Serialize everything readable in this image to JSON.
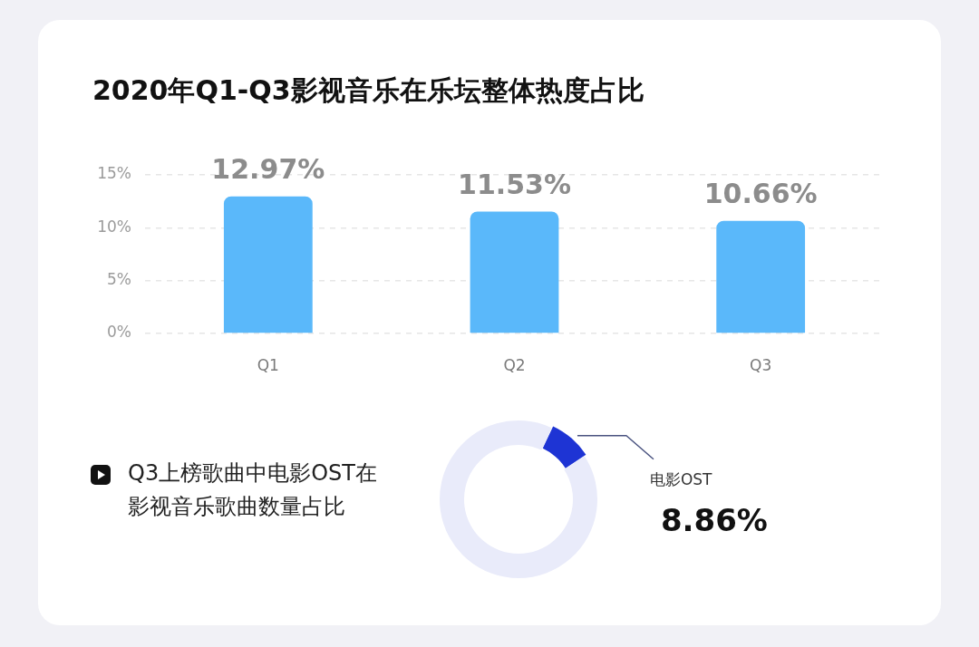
{
  "chart_data": [
    {
      "type": "bar",
      "title": "2020年Q1-Q3影视音乐在乐坛整体热度占比",
      "categories": [
        "Q1",
        "Q2",
        "Q3"
      ],
      "values": [
        12.97,
        11.53,
        10.66
      ],
      "color": "#5ab8fa",
      "value_labels": [
        "12.97%",
        "11.53%",
        "10.66%"
      ],
      "ylim": [
        0,
        15
      ],
      "yticks": [
        {
          "value": 0,
          "label": "0%"
        },
        {
          "value": 5,
          "label": "5%"
        },
        {
          "value": 10,
          "label": "10%"
        },
        {
          "value": 15,
          "label": "15%"
        }
      ],
      "grid": "y"
    },
    {
      "type": "donut",
      "title": "Q3上榜歌曲中电影OST在影视音乐歌曲数量占比",
      "categories": [
        "电影OST",
        null
      ],
      "values": [
        8.86,
        91.14
      ],
      "colors": [
        "#1e34d4",
        "#e9ebfa"
      ],
      "value_labels": [
        "8.86%",
        null
      ]
    }
  ]
}
